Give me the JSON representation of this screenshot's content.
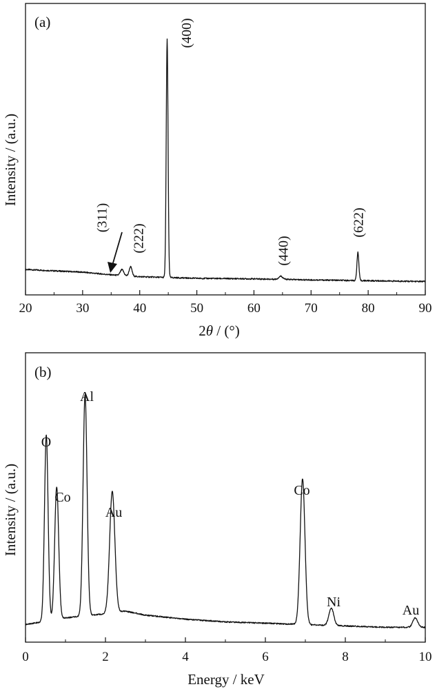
{
  "chart_data": [
    {
      "type": "line",
      "panel_label": "(a)",
      "xlabel_prefix": "2",
      "xlabel_symbol": "θ",
      "xlabel_suffix": " / (°)",
      "ylabel": "Intensity / (a.u.)",
      "xlim": [
        20,
        90
      ],
      "ylim": [
        0,
        100
      ],
      "x_ticks": [
        20,
        30,
        40,
        50,
        60,
        70,
        80,
        90
      ],
      "y_ticks": [],
      "baseline": [
        [
          20,
          9.5
        ],
        [
          30,
          8.5
        ],
        [
          35,
          7.5
        ],
        [
          40,
          6.8
        ],
        [
          50,
          6.2
        ],
        [
          60,
          6.0
        ],
        [
          70,
          5.6
        ],
        [
          80,
          5.3
        ],
        [
          90,
          5.0
        ]
      ],
      "peaks": [
        {
          "label": "(311)",
          "x": 36.9,
          "height": 2.2,
          "width": 0.3
        },
        {
          "label": "(222)",
          "x": 38.4,
          "height": 3.5,
          "width": 0.25
        },
        {
          "label": "(400)",
          "x": 44.8,
          "height": 89.0,
          "width": 0.16
        },
        {
          "label": "(440)",
          "x": 64.7,
          "height": 1.2,
          "width": 0.35
        },
        {
          "label": "(622)",
          "x": 78.2,
          "height": 10.5,
          "width": 0.17
        }
      ],
      "annotation_arrow_target": "(311)"
    },
    {
      "type": "line",
      "panel_label": "(b)",
      "xlabel": "Energy / keV",
      "ylabel": "Intensity / (a.u.)",
      "xlim": [
        0,
        10
      ],
      "ylim": [
        0,
        100
      ],
      "x_ticks": [
        0,
        2,
        4,
        6,
        8,
        10
      ],
      "y_ticks": [],
      "baseline": [
        [
          0,
          6.5
        ],
        [
          0.6,
          8.0
        ],
        [
          1.0,
          9.0
        ],
        [
          2.0,
          10.5
        ],
        [
          2.5,
          11.5
        ],
        [
          3.0,
          10.0
        ],
        [
          4.0,
          8.5
        ],
        [
          5.0,
          7.5
        ],
        [
          6.0,
          7.0
        ],
        [
          7.0,
          6.5
        ],
        [
          8.0,
          6.0
        ],
        [
          9.0,
          5.5
        ],
        [
          10.0,
          5.5
        ]
      ],
      "peaks": [
        {
          "label": "O",
          "x": 0.52,
          "height": 69.0,
          "width": 0.045
        },
        {
          "label": "Co",
          "x": 0.78,
          "height": 49.0,
          "width": 0.05
        },
        {
          "label": "Al",
          "x": 1.49,
          "height": 82.0,
          "width": 0.05
        },
        {
          "label": "Au",
          "x": 2.17,
          "height": 45.0,
          "width": 0.065
        },
        {
          "label": "Co",
          "x": 6.93,
          "height": 54.0,
          "width": 0.06
        },
        {
          "label": "Ni",
          "x": 7.65,
          "height": 6.5,
          "width": 0.06
        },
        {
          "label": "Au",
          "x": 9.75,
          "height": 3.5,
          "width": 0.06
        }
      ]
    }
  ]
}
